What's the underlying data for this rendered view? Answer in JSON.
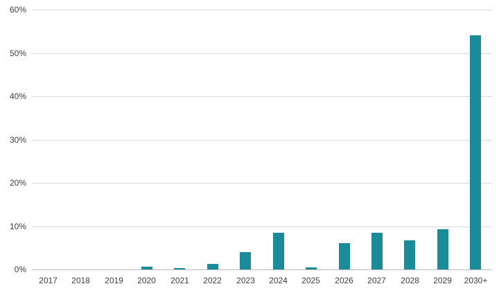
{
  "chart_data": {
    "type": "bar",
    "title": "",
    "xlabel": "",
    "ylabel": "",
    "categories": [
      "2017",
      "2018",
      "2019",
      "2020",
      "2021",
      "2022",
      "2023",
      "2024",
      "2025",
      "2026",
      "2027",
      "2028",
      "2029",
      "2030+"
    ],
    "values": [
      0,
      0,
      0,
      0.7,
      0.3,
      1.2,
      4.0,
      8.5,
      0.5,
      6.0,
      8.5,
      6.7,
      9.3,
      54.0
    ],
    "ylim": [
      0,
      60
    ],
    "yticks": [
      0,
      10,
      20,
      30,
      40,
      50,
      60
    ],
    "ytick_suffix": "%",
    "grid": "horizontal",
    "legend": "none",
    "bar_color": "#1a8c99",
    "grid_color": "#d9d9d9",
    "baseline_color": "#bdbdbd",
    "axis_text_color": "#3d3d3d",
    "background_color": "#ffffff"
  }
}
